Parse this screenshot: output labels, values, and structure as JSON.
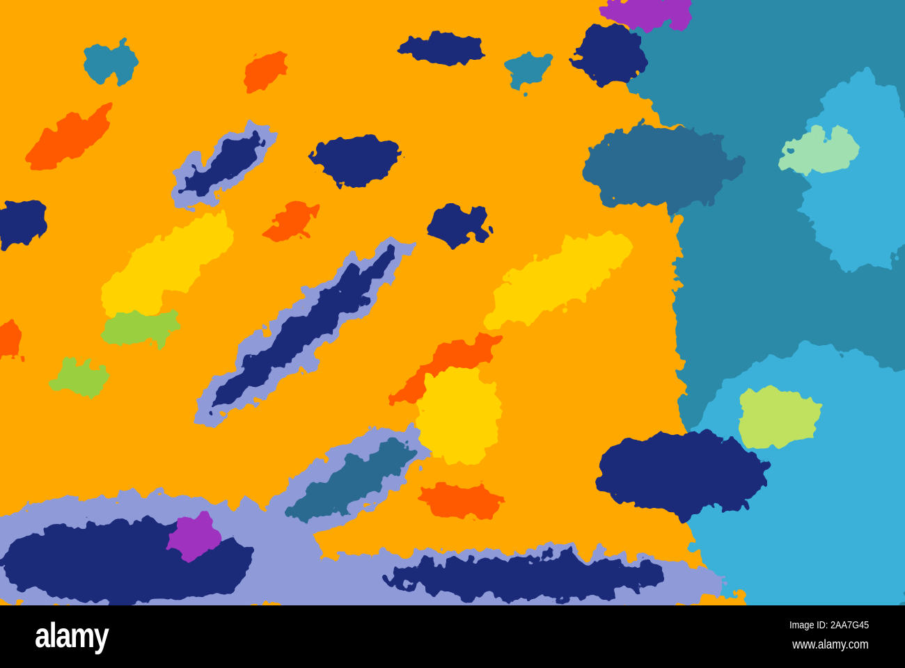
{
  "photo": {
    "subject": "abstract psychedelic false-color texture",
    "colors": {
      "orange": "#ff9a00",
      "yellow": "#ffd200",
      "red": "#ff5a00",
      "navy": "#1a2a7a",
      "teal": "#2a8aa8",
      "cyan": "#3ab0d8",
      "lavender": "#8f9ad8",
      "green": "#9ad040",
      "magenta": "#a030c0"
    }
  },
  "watermark": {
    "logo": "alamy",
    "image_id": "Image ID: 2AA7G45",
    "site": "www.alamy.com"
  }
}
